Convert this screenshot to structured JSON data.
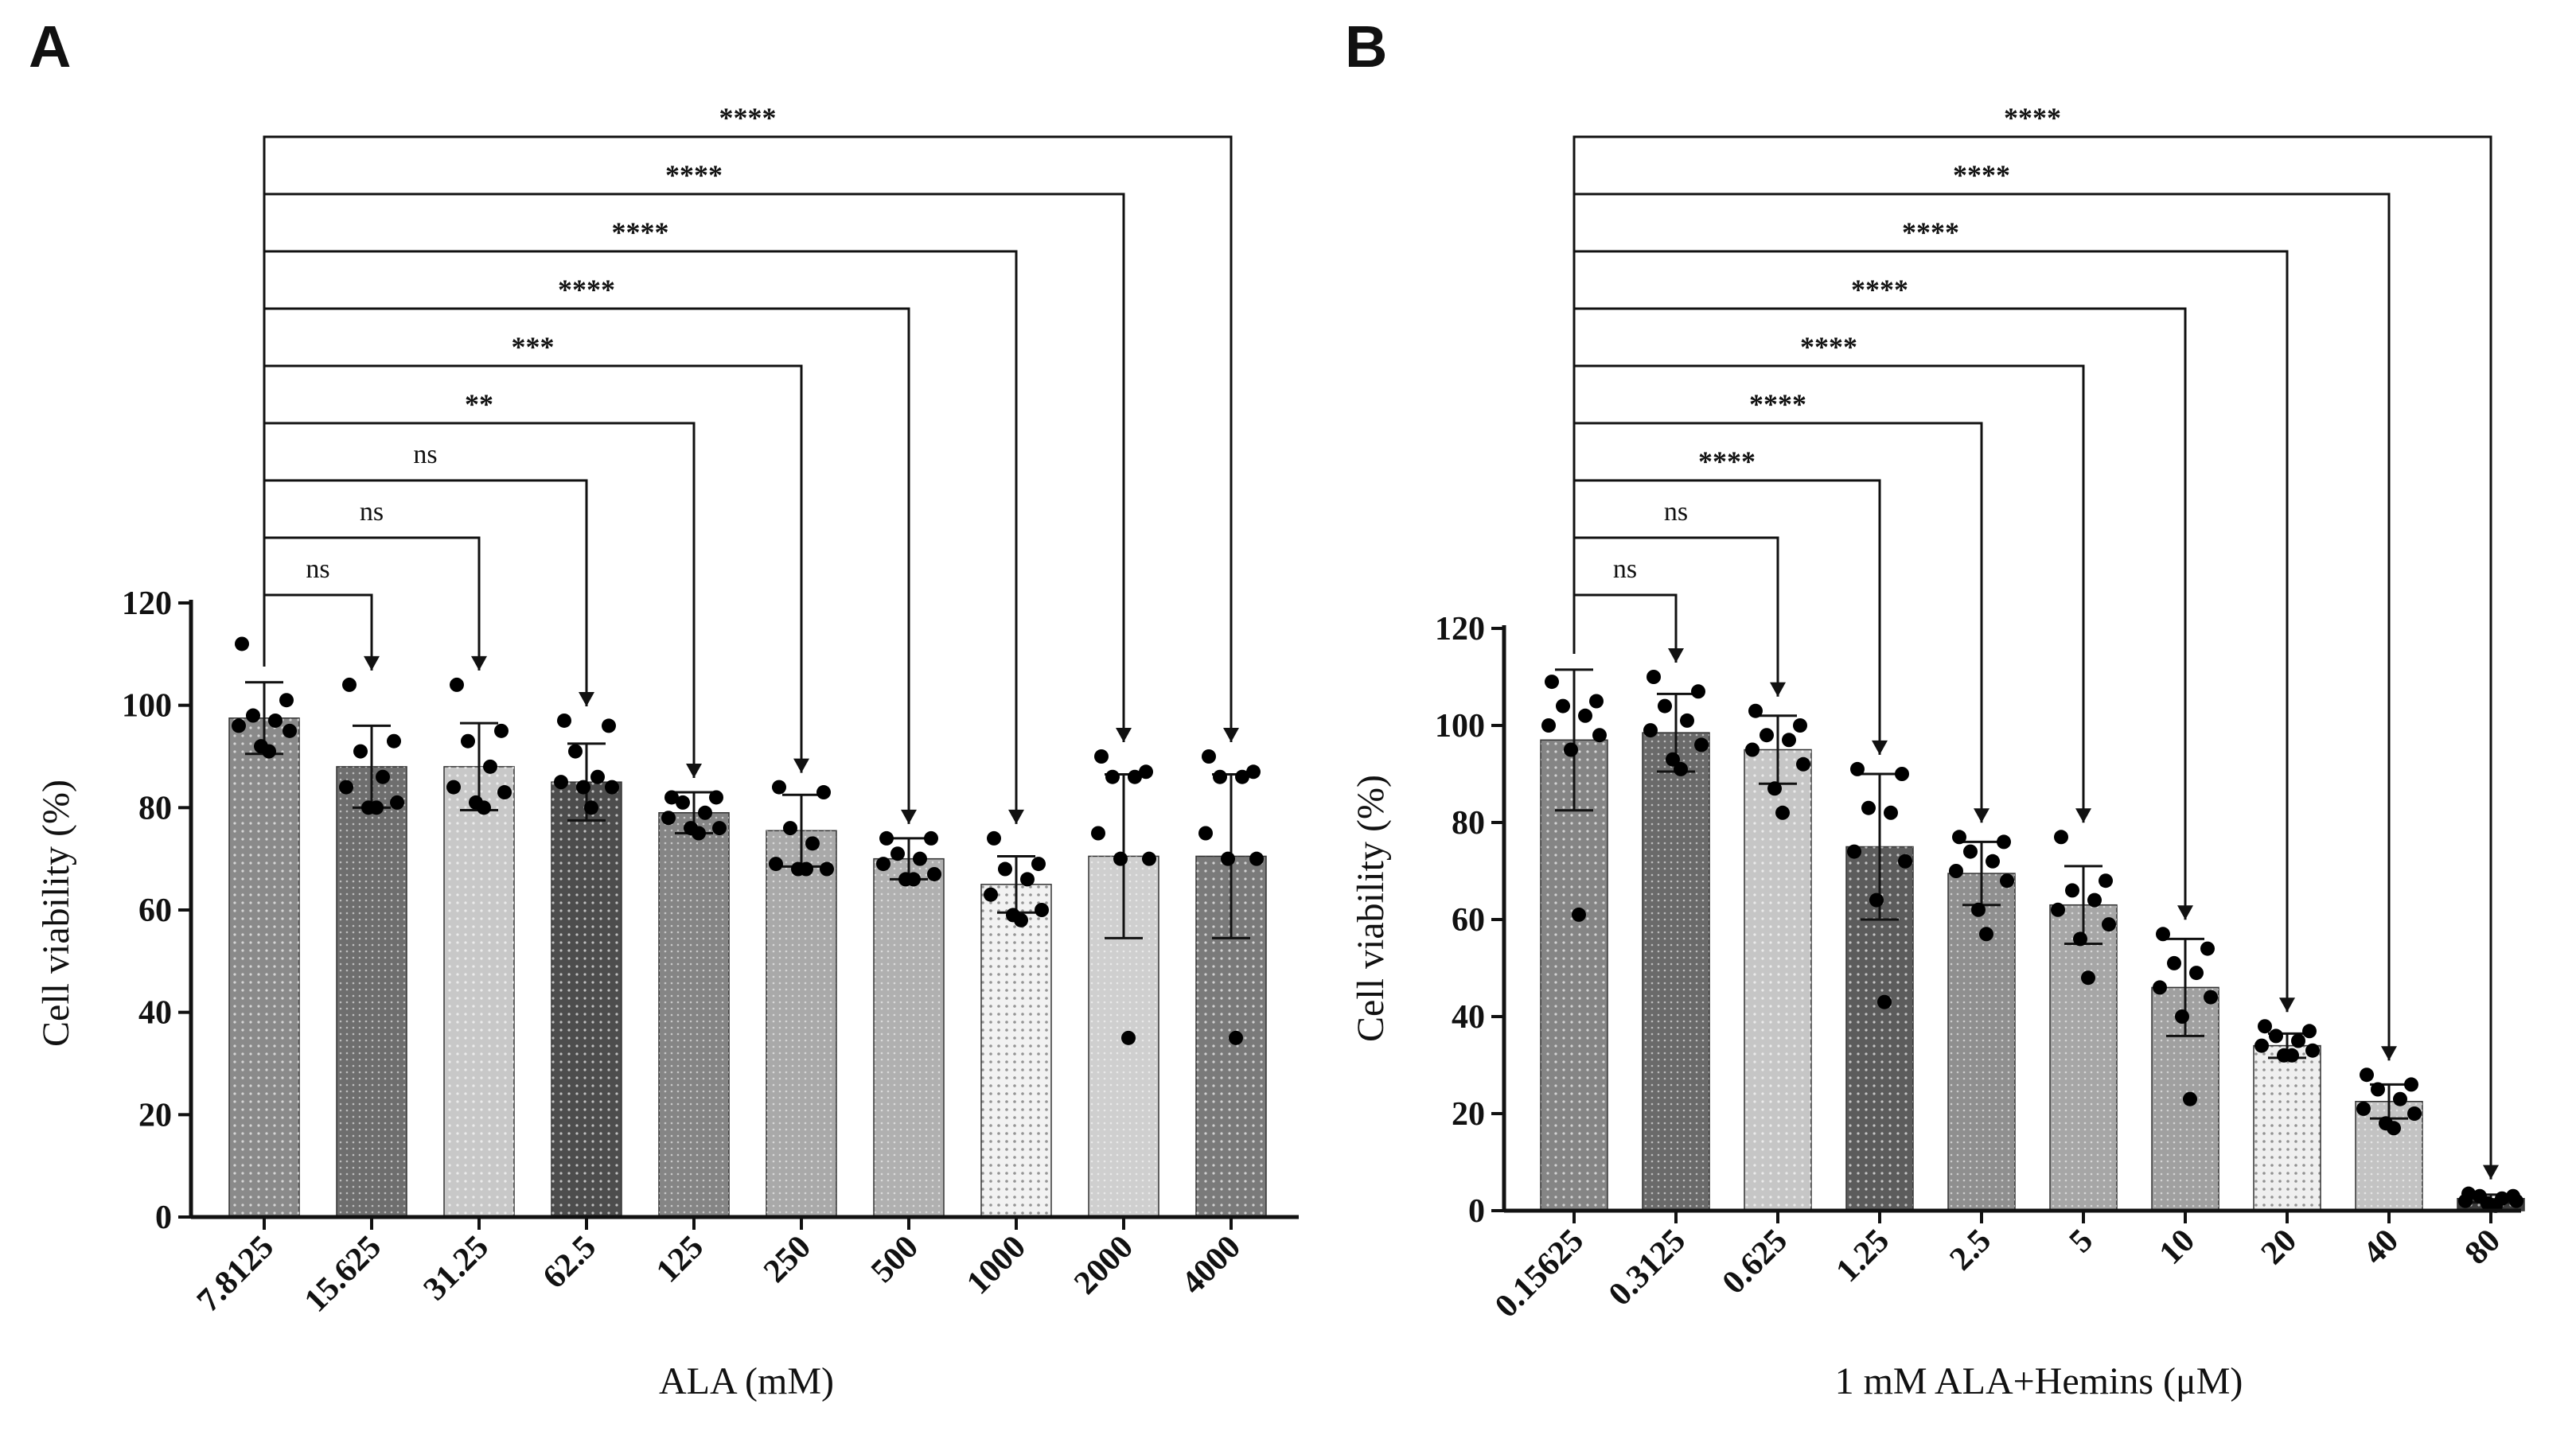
{
  "chart_data": [
    {
      "panel": "A",
      "type": "bar",
      "xlabel": "ALA (mM)",
      "ylabel": "Cell viability (%)",
      "ylim": [
        0,
        120
      ],
      "yticks": [
        0,
        20,
        40,
        60,
        80,
        100,
        120
      ],
      "grid": false,
      "legend": "none",
      "categories": [
        "7.8125",
        "15.625",
        "31.25",
        "62.5",
        "125",
        "250",
        "500",
        "1000",
        "2000",
        "4000"
      ],
      "values": [
        97.5,
        88,
        88,
        85,
        79,
        75.5,
        70,
        65,
        70.5,
        70.5
      ],
      "sd": [
        7,
        8,
        8.5,
        7.5,
        4,
        7,
        4,
        5.5,
        16,
        16
      ],
      "bar_colors": [
        "#8a8a8a",
        "#6e6e6e",
        "#c8c8c8",
        "#4d4d4d",
        "#858585",
        "#a9a9a9",
        "#b0b0b0",
        "#f2f2f2",
        "#cfcfcf",
        "#7a7a7a"
      ],
      "points": [
        [
          112,
          101,
          98,
          97,
          96,
          95,
          92,
          91
        ],
        [
          104,
          93,
          91,
          86,
          84,
          81,
          80,
          80
        ],
        [
          104,
          95,
          93,
          88,
          84,
          83,
          81,
          80
        ],
        [
          97,
          96,
          91,
          86,
          85,
          84,
          84,
          80
        ],
        [
          82,
          82,
          81,
          79,
          78,
          76,
          76,
          75
        ],
        [
          84,
          83,
          76,
          73,
          69,
          68,
          68,
          68
        ],
        [
          74,
          74,
          71,
          70,
          69,
          67,
          66,
          66
        ],
        [
          74,
          69,
          68,
          66,
          63,
          60,
          59,
          58
        ],
        [
          90,
          87,
          86,
          86,
          75,
          70,
          70,
          35
        ],
        [
          90,
          87,
          86,
          86,
          75,
          70,
          70,
          35
        ]
      ],
      "comparisons": [
        {
          "to": 1,
          "label": "ns"
        },
        {
          "to": 2,
          "label": "ns"
        },
        {
          "to": 3,
          "label": "ns"
        },
        {
          "to": 4,
          "label": "**"
        },
        {
          "to": 5,
          "label": "***"
        },
        {
          "to": 6,
          "label": "****"
        },
        {
          "to": 7,
          "label": "****"
        },
        {
          "to": 8,
          "label": "****"
        },
        {
          "to": 9,
          "label": "****"
        }
      ]
    },
    {
      "panel": "B",
      "type": "bar",
      "xlabel": "1 mM ALA+Hemins (μM)",
      "ylabel": "Cell viability (%)",
      "ylim": [
        0,
        120
      ],
      "yticks": [
        0,
        20,
        40,
        60,
        80,
        100,
        120
      ],
      "grid": false,
      "legend": "none",
      "categories": [
        "0.15625",
        "0.3125",
        "0.625",
        "1.25",
        "2.5",
        "5",
        "10",
        "20",
        "40",
        "80"
      ],
      "values": [
        97,
        98.5,
        95,
        75,
        69.5,
        63,
        46,
        34,
        22.5,
        2.5
      ],
      "sd": [
        14.5,
        8,
        7,
        15,
        6.5,
        8,
        10,
        2.5,
        3.5,
        0.8
      ],
      "bar_colors": [
        "#858585",
        "#6a6a6a",
        "#c6c6c6",
        "#5c5c5c",
        "#8f8f8f",
        "#a6a6a6",
        "#a0a0a0",
        "#efefef",
        "#c3c3c3",
        "#3c3c3c"
      ],
      "points": [
        [
          109,
          105,
          104,
          102,
          100,
          98,
          95,
          61
        ],
        [
          110,
          107,
          104,
          101,
          99,
          96,
          93,
          91
        ],
        [
          103,
          100,
          98,
          97,
          95,
          92,
          87,
          82
        ],
        [
          91,
          90,
          83,
          82,
          74,
          72,
          64,
          43
        ],
        [
          77,
          76,
          74,
          72,
          70,
          68,
          62,
          57
        ],
        [
          77,
          68,
          66,
          64,
          62,
          59,
          56,
          48
        ],
        [
          57,
          54,
          51,
          49,
          46,
          44,
          40,
          23
        ],
        [
          38,
          37,
          36,
          35,
          34,
          33,
          32,
          32
        ],
        [
          28,
          26,
          25,
          23,
          21,
          20,
          18,
          17
        ],
        [
          3.5,
          3,
          3,
          2.5,
          2,
          2,
          1.5,
          1
        ]
      ],
      "comparisons": [
        {
          "to": 1,
          "label": "ns"
        },
        {
          "to": 2,
          "label": "ns"
        },
        {
          "to": 3,
          "label": "****"
        },
        {
          "to": 4,
          "label": "****"
        },
        {
          "to": 5,
          "label": "****"
        },
        {
          "to": 6,
          "label": "****"
        },
        {
          "to": 7,
          "label": "****"
        },
        {
          "to": 8,
          "label": "****"
        },
        {
          "to": 9,
          "label": "****"
        }
      ]
    }
  ]
}
